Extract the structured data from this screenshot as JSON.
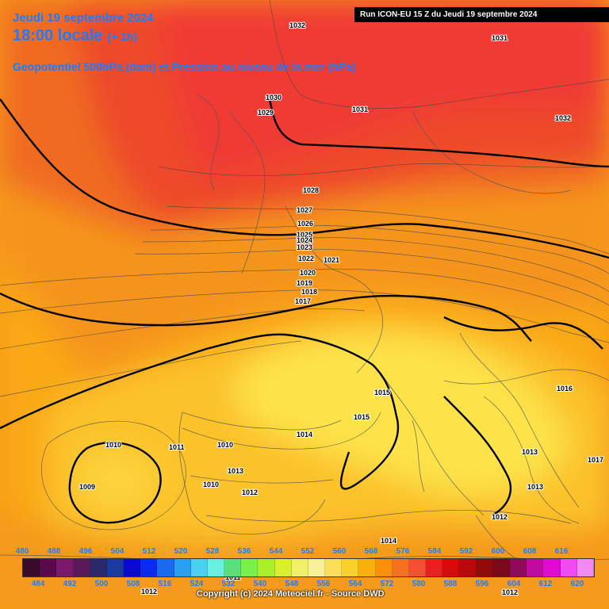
{
  "header": {
    "date": "Jeudi 19 septembre 2024",
    "time": "18:00 locale",
    "time_offset": "(+ 1h)",
    "field": "Geopotentiel 500hPa (dam) et Pression au niveau de la mer (hPa)",
    "run": "Run ICON-EU 15 Z du Jeudi 19 septembre 2024"
  },
  "copyright": "Copyright (c) 2024 Meteociel.fr - Source DWD",
  "legend": {
    "top_labels": [
      "480",
      "488",
      "496",
      "504",
      "512",
      "520",
      "528",
      "536",
      "544",
      "552",
      "560",
      "568",
      "576",
      "584",
      "592",
      "600",
      "608",
      "616"
    ],
    "bottom_labels": [
      "484",
      "492",
      "500",
      "508",
      "516",
      "524",
      "532",
      "540",
      "548",
      "556",
      "564",
      "572",
      "580",
      "588",
      "596",
      "604",
      "612",
      "620"
    ],
    "colors": [
      "#3a0a2a",
      "#5a0a4a",
      "#7a1a6a",
      "#5a1a5a",
      "#2a2a6a",
      "#1a3aa0",
      "#0a0ad0",
      "#0a2af0",
      "#1a6af0",
      "#2aa0f0",
      "#4ad0f0",
      "#6af0e0",
      "#5ae07a",
      "#7af04a",
      "#aaf02a",
      "#d8f02a",
      "#f0f06a",
      "#faf09a",
      "#fae05a",
      "#fad02a",
      "#fab00a",
      "#fa900a",
      "#f57020",
      "#f25030",
      "#ea2020",
      "#d80a0a",
      "#b80a0a",
      "#900a0a",
      "#7a0a1a",
      "#900a5a",
      "#c00aa0",
      "#e00ad0",
      "#f04af0",
      "#f08af0"
    ]
  },
  "pressure_labels": [
    "1032",
    "1031",
    "1030",
    "1029",
    "1031",
    "1032",
    "1028",
    "1027",
    "1026",
    "1025",
    "1024",
    "1023",
    "1022",
    "1021",
    "1020",
    "1019",
    "1018",
    "1017",
    "1016",
    "1015",
    "1015",
    "1014",
    "1013",
    "1012",
    "1011",
    "1010",
    "1010",
    "1009",
    "1010",
    "1013",
    "1012",
    "1016",
    "1013",
    "1017",
    "1013",
    "1011",
    "1014",
    "1012",
    "1012"
  ],
  "icons": {
    "map": "weather-map"
  }
}
